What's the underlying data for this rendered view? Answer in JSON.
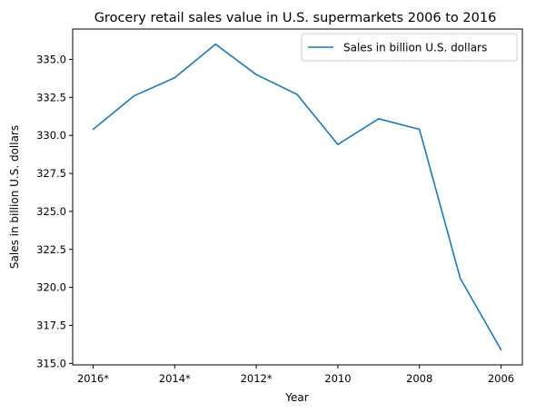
{
  "chart_data": {
    "type": "line",
    "title": "Grocery retail sales value in U.S. supermarkets 2006 to 2016",
    "xlabel": "Year",
    "ylabel": "Sales in billion U.S. dollars",
    "categories": [
      "2016*",
      "2015*",
      "2014*",
      "2013*",
      "2012*",
      "2011",
      "2010",
      "2009",
      "2008",
      "2007",
      "2006"
    ],
    "x_tick_labels": [
      "2016*",
      "2014*",
      "2012*",
      "2010",
      "2008",
      "2006"
    ],
    "y_ticks": [
      "315.0",
      "317.5",
      "320.0",
      "322.5",
      "325.0",
      "327.5",
      "330.0",
      "332.5",
      "335.0"
    ],
    "ylim": [
      314.9,
      337.0
    ],
    "series": [
      {
        "name": "Sales in billion U.S. dollars",
        "color": "#1f77b4",
        "values": [
          330.4,
          332.6,
          333.8,
          336.0,
          334.0,
          332.7,
          329.4,
          331.1,
          330.4,
          320.6,
          315.9
        ]
      }
    ],
    "legend": "top-right",
    "grid": false
  }
}
